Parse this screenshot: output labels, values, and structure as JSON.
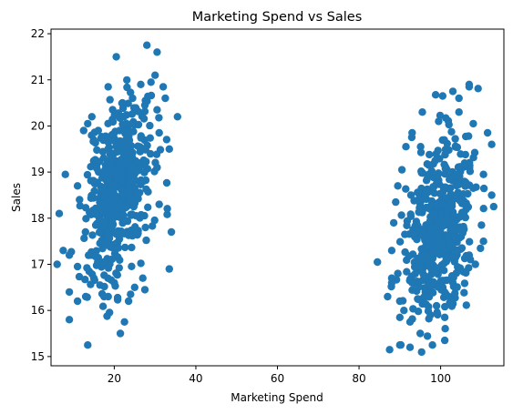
{
  "chart_data": {
    "type": "scatter",
    "title": "Marketing Spend vs Sales",
    "xlabel": "Marketing Spend",
    "ylabel": "Sales",
    "xlim": [
      4.5,
      115.5
    ],
    "ylim": [
      14.8,
      22.1
    ],
    "xticks": [
      20,
      40,
      60,
      80,
      100
    ],
    "yticks": [
      15,
      16,
      17,
      18,
      19,
      20,
      21,
      22
    ],
    "grid": false,
    "color": "#1f77b4",
    "clusters": [
      {
        "x_mean": 21,
        "x_sd": 4.8,
        "y_mean": 18.6,
        "y_sd": 1.05,
        "count": 500,
        "seed": 7
      },
      {
        "x_mean": 100,
        "x_sd": 5.2,
        "y_mean": 17.8,
        "y_sd": 1.05,
        "count": 500,
        "seed": 13
      }
    ],
    "series": [
      {
        "points": [
          [
            28,
            21.75
          ],
          [
            30.5,
            21.6
          ],
          [
            20.5,
            21.5
          ],
          [
            30,
            21.1
          ],
          [
            26.5,
            20.9
          ],
          [
            29,
            20.95
          ],
          [
            32,
            20.85
          ],
          [
            18.5,
            20.85
          ],
          [
            32.5,
            20.6
          ],
          [
            24.5,
            20.6
          ],
          [
            27.5,
            20.45
          ],
          [
            22,
            20.5
          ],
          [
            35.5,
            20.2
          ],
          [
            30.5,
            20.35
          ],
          [
            14.5,
            20.2
          ],
          [
            13.5,
            20.05
          ],
          [
            12.5,
            19.9
          ],
          [
            31,
            19.85
          ],
          [
            33.5,
            19.5
          ],
          [
            30.5,
            19.1
          ],
          [
            8,
            18.95
          ],
          [
            11,
            18.7
          ],
          [
            11.5,
            18.4
          ],
          [
            6.5,
            18.1
          ],
          [
            34,
            17.7
          ],
          [
            31,
            18.3
          ],
          [
            7.5,
            17.3
          ],
          [
            9,
            17.2
          ],
          [
            11,
            16.95
          ],
          [
            33.5,
            16.9
          ],
          [
            9,
            16.4
          ],
          [
            11,
            16.2
          ],
          [
            13,
            16.3
          ],
          [
            16.5,
            16.55
          ],
          [
            18.5,
            16.3
          ],
          [
            24,
            16.35
          ],
          [
            27.5,
            16.45
          ],
          [
            9,
            15.8
          ],
          [
            22.5,
            15.75
          ],
          [
            13.5,
            15.25
          ],
          [
            21.5,
            15.5
          ],
          [
            25,
            16.5
          ],
          [
            23.5,
            16.2
          ],
          [
            17.5,
            16.3
          ],
          [
            6,
            17
          ],
          [
            15,
            16.7
          ],
          [
            27,
            16.7
          ],
          [
            20,
            16.6
          ],
          [
            107,
            20.9
          ],
          [
            107,
            20.85
          ],
          [
            103,
            20.75
          ],
          [
            100.5,
            20.65
          ],
          [
            104.5,
            20.6
          ],
          [
            95.5,
            20.3
          ],
          [
            104.5,
            20.3
          ],
          [
            99.5,
            20.1
          ],
          [
            108,
            20.05
          ],
          [
            111.5,
            19.85
          ],
          [
            93,
            19.85
          ],
          [
            112.5,
            19.6
          ],
          [
            91.5,
            19.55
          ],
          [
            90.5,
            19.05
          ],
          [
            110.5,
            18.95
          ],
          [
            89.5,
            18.7
          ],
          [
            112.5,
            18.5
          ],
          [
            89,
            18.35
          ],
          [
            113,
            18.25
          ],
          [
            88.5,
            17.9
          ],
          [
            110,
            17.85
          ],
          [
            110.5,
            17.5
          ],
          [
            88,
            17.3
          ],
          [
            84.5,
            17.05
          ],
          [
            108.5,
            17
          ],
          [
            89.5,
            16.8
          ],
          [
            88,
            16.6
          ],
          [
            87,
            16.3
          ],
          [
            103,
            16.6
          ],
          [
            90,
            16.2
          ],
          [
            90,
            15.85
          ],
          [
            92.5,
            15.75
          ],
          [
            97.5,
            15.9
          ],
          [
            101,
            15.85
          ],
          [
            95,
            15.5
          ],
          [
            87.5,
            15.15
          ],
          [
            90,
            15.25
          ],
          [
            92.5,
            15.2
          ],
          [
            98,
            15.25
          ],
          [
            101,
            15.35
          ],
          [
            88,
            16.7
          ],
          [
            91,
            16
          ],
          [
            104,
            16.5
          ],
          [
            107,
            17.2
          ],
          [
            93,
            16.6
          ],
          [
            96,
            16.3
          ],
          [
            99,
            16.1
          ],
          [
            102,
            16.3
          ]
        ]
      }
    ]
  }
}
